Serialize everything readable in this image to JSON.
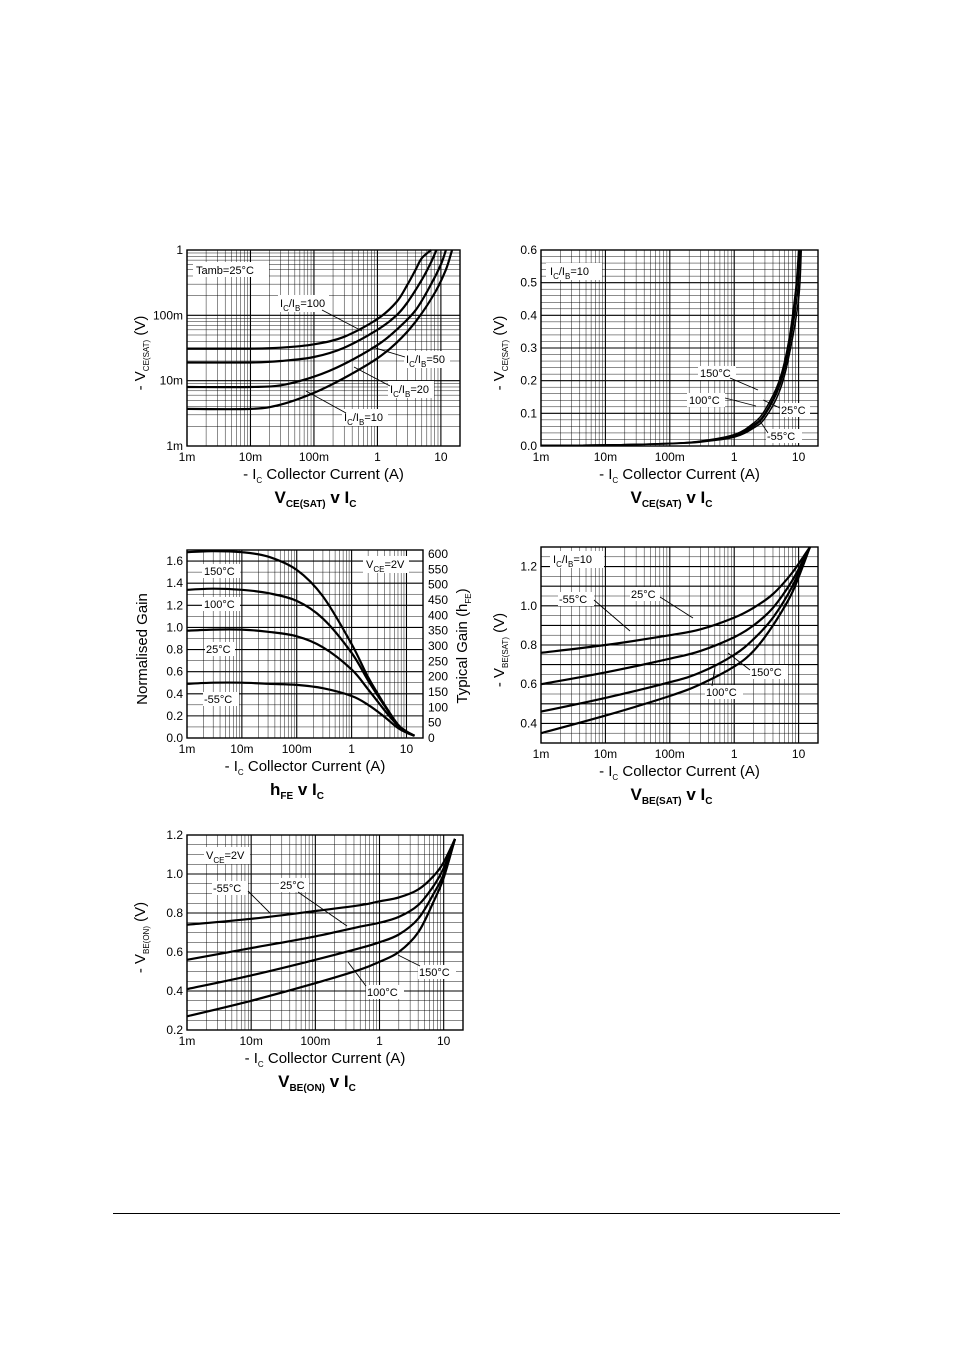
{
  "chart_data": [
    {
      "id": "vcesat",
      "type": "line",
      "x_scale": "log",
      "y_scale": "log",
      "xlim": [
        0.001,
        20
      ],
      "ylim": [
        0.001,
        1
      ],
      "x_ticks": [
        {
          "v": 0.001,
          "t": "1m"
        },
        {
          "v": 0.01,
          "t": "10m"
        },
        {
          "v": 0.1,
          "t": "100m"
        },
        {
          "v": 1,
          "t": "1"
        },
        {
          "v": 10,
          "t": "10"
        }
      ],
      "y_ticks": [
        {
          "v": 0.001,
          "t": "1m"
        },
        {
          "v": 0.01,
          "t": "10m"
        },
        {
          "v": 0.1,
          "t": "100m"
        },
        {
          "v": 1,
          "t": "1"
        }
      ],
      "xlabel": {
        "pre": "- I",
        "sub": "C",
        "post": "   Collector Current (A)"
      },
      "ylabel": {
        "pre": "- V",
        "sub": "CE(SAT)",
        "post": "  (V)"
      },
      "title": {
        "main": "V",
        "sub": "CE(SAT)",
        "post": " v I",
        "sub2": "C"
      },
      "condition": "Tamb=25°C",
      "series": [
        {
          "name": "I_C/I_B=100",
          "label": {
            "a": "I",
            "s1": "C",
            "b": "/I",
            "s2": "B",
            "c": "=100"
          },
          "x": [
            0.001,
            0.01,
            0.03,
            0.1,
            0.3,
            1,
            2,
            3,
            4,
            5,
            7
          ],
          "y": [
            0.031,
            0.031,
            0.032,
            0.036,
            0.047,
            0.088,
            0.16,
            0.3,
            0.5,
            0.75,
            1
          ]
        },
        {
          "name": "I_C/I_B=50",
          "label": {
            "a": "I",
            "s1": "C",
            "b": "/I",
            "s2": "B",
            "c": "=50"
          },
          "x": [
            0.001,
            0.01,
            0.03,
            0.1,
            0.3,
            1,
            2,
            3,
            5,
            7,
            8.5
          ],
          "y": [
            0.019,
            0.019,
            0.02,
            0.023,
            0.032,
            0.06,
            0.1,
            0.16,
            0.35,
            0.65,
            1
          ]
        },
        {
          "name": "I_C/I_B=20",
          "label": {
            "a": "I",
            "s1": "C",
            "b": "/I",
            "s2": "B",
            "c": "=20"
          },
          "x": [
            0.001,
            0.01,
            0.03,
            0.1,
            0.3,
            1,
            2,
            4,
            7,
            10,
            12
          ],
          "y": [
            0.008,
            0.008,
            0.0085,
            0.0115,
            0.018,
            0.035,
            0.06,
            0.12,
            0.3,
            0.6,
            1
          ]
        },
        {
          "name": "I_C/I_B=10",
          "label": {
            "a": "I",
            "s1": "C",
            "b": "/I",
            "s2": "B",
            "c": "=10"
          },
          "x": [
            0.001,
            0.01,
            0.03,
            0.1,
            0.3,
            1,
            2,
            4,
            8,
            12,
            15
          ],
          "y": [
            0.0037,
            0.0037,
            0.0043,
            0.0065,
            0.011,
            0.022,
            0.038,
            0.08,
            0.22,
            0.5,
            1
          ]
        }
      ]
    },
    {
      "id": "vcesat-temp",
      "type": "line",
      "x_scale": "log",
      "y_scale": "linear",
      "xlim": [
        0.001,
        20
      ],
      "ylim": [
        0,
        0.6
      ],
      "x_ticks": [
        {
          "v": 0.001,
          "t": "1m"
        },
        {
          "v": 0.01,
          "t": "10m"
        },
        {
          "v": 0.1,
          "t": "100m"
        },
        {
          "v": 1,
          "t": "1"
        },
        {
          "v": 10,
          "t": "10"
        }
      ],
      "y_ticks": [
        {
          "v": 0,
          "t": "0.0"
        },
        {
          "v": 0.1,
          "t": "0.1"
        },
        {
          "v": 0.2,
          "t": "0.2"
        },
        {
          "v": 0.3,
          "t": "0.3"
        },
        {
          "v": 0.4,
          "t": "0.4"
        },
        {
          "v": 0.5,
          "t": "0.5"
        },
        {
          "v": 0.6,
          "t": "0.6"
        }
      ],
      "xlabel": {
        "pre": "- I",
        "sub": "C",
        "post": "   Collector Current (A)"
      },
      "ylabel": {
        "pre": "- V",
        "sub": "CE(SAT)",
        "post": "  (V)"
      },
      "title": {
        "main": "V",
        "sub": "CE(SAT)",
        "post": " v I",
        "sub2": "C"
      },
      "condition": {
        "a": "I",
        "s1": "C",
        "b": "/I",
        "s2": "B",
        "c": "=10"
      },
      "series": [
        {
          "name": "150°C",
          "x": [
            0.001,
            0.01,
            0.1,
            0.3,
            1,
            2,
            3,
            5,
            7,
            9,
            10
          ],
          "y": [
            0.002,
            0.003,
            0.008,
            0.015,
            0.035,
            0.07,
            0.11,
            0.2,
            0.32,
            0.48,
            0.6
          ]
        },
        {
          "name": "100°C",
          "x": [
            0.001,
            0.01,
            0.1,
            0.3,
            1,
            2,
            3,
            5,
            7,
            9,
            10.3
          ],
          "y": [
            0.002,
            0.003,
            0.008,
            0.014,
            0.032,
            0.065,
            0.1,
            0.19,
            0.3,
            0.46,
            0.6
          ]
        },
        {
          "name": "25°C",
          "x": [
            0.001,
            0.01,
            0.1,
            0.3,
            1,
            2,
            3,
            5,
            7,
            9.5,
            10.6
          ],
          "y": [
            0.002,
            0.003,
            0.007,
            0.013,
            0.03,
            0.06,
            0.095,
            0.18,
            0.29,
            0.46,
            0.6
          ]
        },
        {
          "name": "-55°C",
          "x": [
            0.001,
            0.01,
            0.1,
            0.3,
            1,
            2,
            3,
            5,
            7,
            10,
            11
          ],
          "y": [
            0.002,
            0.003,
            0.007,
            0.012,
            0.027,
            0.055,
            0.085,
            0.165,
            0.27,
            0.45,
            0.6
          ]
        }
      ]
    },
    {
      "id": "hfe",
      "type": "line",
      "x_scale": "log",
      "y_scale": "linear",
      "xlim": [
        0.001,
        20
      ],
      "ylim": [
        0,
        1.7
      ],
      "y2lim": [
        0,
        600
      ],
      "x_ticks": [
        {
          "v": 0.001,
          "t": "1m"
        },
        {
          "v": 0.01,
          "t": "10m"
        },
        {
          "v": 0.1,
          "t": "100m"
        },
        {
          "v": 1,
          "t": "1"
        },
        {
          "v": 10,
          "t": "10"
        }
      ],
      "y_ticks": [
        {
          "v": 0,
          "t": "0.0"
        },
        {
          "v": 0.2,
          "t": "0.2"
        },
        {
          "v": 0.4,
          "t": "0.4"
        },
        {
          "v": 0.6,
          "t": "0.6"
        },
        {
          "v": 0.8,
          "t": "0.8"
        },
        {
          "v": 1.0,
          "t": "1.0"
        },
        {
          "v": 1.2,
          "t": "1.2"
        },
        {
          "v": 1.4,
          "t": "1.4"
        },
        {
          "v": 1.6,
          "t": "1.6"
        }
      ],
      "y2_ticks": [
        "0",
        "50",
        "100",
        "150",
        "200",
        "250",
        "300",
        "350",
        "400",
        "450",
        "500",
        "550",
        "600"
      ],
      "xlabel": {
        "pre": "- I",
        "sub": "C",
        "post": "   Collector Current (A)"
      },
      "ylabel": "Normalised Gain",
      "y2label": {
        "pre": "Typical Gain (h",
        "sub": "FE",
        "post": ")"
      },
      "title": {
        "main": "h",
        "sub": "FE",
        "post": " v I",
        "sub2": "C"
      },
      "condition": {
        "a": "V",
        "s1": "CE",
        "c": "=2V"
      },
      "series": [
        {
          "name": "150°C",
          "x": [
            0.001,
            0.003,
            0.01,
            0.03,
            0.1,
            0.3,
            1,
            2,
            4,
            7,
            10,
            14
          ],
          "y": [
            1.68,
            1.69,
            1.68,
            1.64,
            1.52,
            1.28,
            0.85,
            0.55,
            0.3,
            0.12,
            0.06,
            0.02
          ]
        },
        {
          "name": "100°C",
          "x": [
            0.001,
            0.003,
            0.01,
            0.03,
            0.1,
            0.3,
            1,
            2,
            4,
            7,
            10,
            14
          ],
          "y": [
            1.34,
            1.35,
            1.34,
            1.31,
            1.24,
            1.08,
            0.77,
            0.52,
            0.29,
            0.12,
            0.06,
            0.02
          ]
        },
        {
          "name": "25°C",
          "x": [
            0.001,
            0.003,
            0.01,
            0.03,
            0.1,
            0.3,
            1,
            2,
            4,
            7,
            10,
            14
          ],
          "y": [
            0.97,
            0.98,
            0.98,
            0.96,
            0.92,
            0.82,
            0.62,
            0.44,
            0.25,
            0.11,
            0.05,
            0.02
          ]
        },
        {
          "name": "-55°C",
          "x": [
            0.001,
            0.003,
            0.01,
            0.03,
            0.1,
            0.3,
            1,
            2,
            4,
            7,
            10,
            14
          ],
          "y": [
            0.49,
            0.5,
            0.5,
            0.49,
            0.48,
            0.45,
            0.38,
            0.3,
            0.19,
            0.09,
            0.05,
            0.02
          ]
        }
      ]
    },
    {
      "id": "vbesat",
      "type": "line",
      "x_scale": "log",
      "y_scale": "linear",
      "xlim": [
        0.001,
        20
      ],
      "ylim": [
        0.3,
        1.3
      ],
      "x_ticks": [
        {
          "v": 0.001,
          "t": "1m"
        },
        {
          "v": 0.01,
          "t": "10m"
        },
        {
          "v": 0.1,
          "t": "100m"
        },
        {
          "v": 1,
          "t": "1"
        },
        {
          "v": 10,
          "t": "10"
        }
      ],
      "y_ticks": [
        {
          "v": 0.4,
          "t": "0.4"
        },
        {
          "v": 0.6,
          "t": "0.6"
        },
        {
          "v": 0.8,
          "t": "0.8"
        },
        {
          "v": 1.0,
          "t": "1.0"
        },
        {
          "v": 1.2,
          "t": "1.2"
        }
      ],
      "xlabel": {
        "pre": "- I",
        "sub": "C",
        "post": "   Collector Current (A)"
      },
      "ylabel": {
        "pre": "- V",
        "sub": "BE(SAT)",
        "post": "  (V)"
      },
      "title": {
        "main": "V",
        "sub": "BE(SAT)",
        "post": " v I",
        "sub2": "C"
      },
      "condition": {
        "a": "I",
        "s1": "C",
        "b": "/I",
        "s2": "B",
        "c": "=10"
      },
      "series": [
        {
          "name": "-55°C",
          "x": [
            0.001,
            0.01,
            0.1,
            0.3,
            1,
            2,
            4,
            8,
            15
          ],
          "y": [
            0.76,
            0.8,
            0.85,
            0.88,
            0.94,
            0.99,
            1.06,
            1.17,
            1.3
          ]
        },
        {
          "name": "25°C",
          "x": [
            0.001,
            0.01,
            0.1,
            0.3,
            1,
            2,
            4,
            8,
            15
          ],
          "y": [
            0.6,
            0.66,
            0.73,
            0.77,
            0.84,
            0.9,
            0.99,
            1.13,
            1.3
          ]
        },
        {
          "name": "150°C",
          "x": [
            0.001,
            0.01,
            0.1,
            0.3,
            1,
            2,
            4,
            8,
            15
          ],
          "y": [
            0.46,
            0.53,
            0.61,
            0.66,
            0.75,
            0.83,
            0.94,
            1.1,
            1.3
          ]
        },
        {
          "name": "100°C",
          "x": [
            0.001,
            0.01,
            0.1,
            0.3,
            1,
            2,
            4,
            8,
            15
          ],
          "y": [
            0.35,
            0.44,
            0.54,
            0.6,
            0.69,
            0.77,
            0.9,
            1.07,
            1.3
          ]
        }
      ]
    },
    {
      "id": "vbeon",
      "type": "line",
      "x_scale": "log",
      "y_scale": "linear",
      "xlim": [
        0.001,
        20
      ],
      "ylim": [
        0.2,
        1.2
      ],
      "x_ticks": [
        {
          "v": 0.001,
          "t": "1m"
        },
        {
          "v": 0.01,
          "t": "10m"
        },
        {
          "v": 0.1,
          "t": "100m"
        },
        {
          "v": 1,
          "t": "1"
        },
        {
          "v": 10,
          "t": "10"
        }
      ],
      "y_ticks": [
        {
          "v": 0.2,
          "t": "0.2"
        },
        {
          "v": 0.4,
          "t": "0.4"
        },
        {
          "v": 0.6,
          "t": "0.6"
        },
        {
          "v": 0.8,
          "t": "0.8"
        },
        {
          "v": 1.0,
          "t": "1.0"
        },
        {
          "v": 1.2,
          "t": "1.2"
        }
      ],
      "xlabel": {
        "pre": "- I",
        "sub": "C",
        "post": "   Collector Current (A)"
      },
      "ylabel": {
        "pre": "- V",
        "sub": "BE(ON)",
        "post": "  (V)"
      },
      "title": {
        "main": "V",
        "sub": "BE(ON)",
        "post": " v I",
        "sub2": "C"
      },
      "condition": {
        "a": "V",
        "s1": "CE",
        "c": "=2V"
      },
      "series": [
        {
          "name": "-55°C",
          "x": [
            0.001,
            0.01,
            0.1,
            0.5,
            1,
            2,
            4,
            7,
            10,
            15
          ],
          "y": [
            0.74,
            0.77,
            0.81,
            0.84,
            0.86,
            0.88,
            0.92,
            0.99,
            1.06,
            1.18
          ]
        },
        {
          "name": "25°C",
          "x": [
            0.001,
            0.01,
            0.1,
            0.5,
            1,
            2,
            4,
            7,
            10,
            15
          ],
          "y": [
            0.56,
            0.62,
            0.68,
            0.73,
            0.75,
            0.78,
            0.84,
            0.94,
            1.03,
            1.18
          ]
        },
        {
          "name": "100°C",
          "x": [
            0.001,
            0.01,
            0.1,
            0.5,
            1,
            2,
            4,
            7,
            10,
            15
          ],
          "y": [
            0.41,
            0.48,
            0.56,
            0.62,
            0.65,
            0.69,
            0.77,
            0.9,
            1.0,
            1.18
          ]
        },
        {
          "name": "150°C",
          "x": [
            0.001,
            0.01,
            0.1,
            0.5,
            1,
            2,
            4,
            7,
            10,
            15
          ],
          "y": [
            0.27,
            0.35,
            0.44,
            0.51,
            0.55,
            0.6,
            0.7,
            0.86,
            0.98,
            1.18
          ]
        }
      ]
    }
  ]
}
